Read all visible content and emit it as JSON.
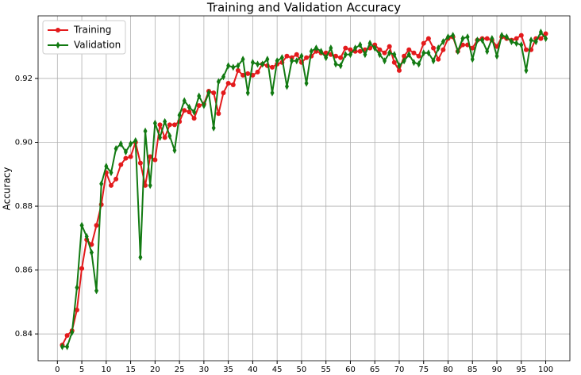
{
  "chart_data": {
    "type": "line",
    "title": "Training and Validation Accuracy",
    "y_label": "Accuracy",
    "x": [
      1,
      2,
      3,
      4,
      5,
      6,
      7,
      8,
      9,
      10,
      11,
      12,
      13,
      14,
      15,
      16,
      17,
      18,
      19,
      20,
      21,
      22,
      23,
      24,
      25,
      26,
      27,
      28,
      29,
      30,
      31,
      32,
      33,
      34,
      35,
      36,
      37,
      38,
      39,
      40,
      41,
      42,
      43,
      44,
      45,
      46,
      47,
      48,
      49,
      50,
      51,
      52,
      53,
      54,
      55,
      56,
      57,
      58,
      59,
      60,
      61,
      62,
      63,
      64,
      65,
      66,
      67,
      68,
      69,
      70,
      71,
      72,
      73,
      74,
      75,
      76,
      77,
      78,
      79,
      80,
      81,
      82,
      83,
      84,
      85,
      86,
      87,
      88,
      89,
      90,
      91,
      92,
      93,
      94,
      95,
      96,
      97,
      98,
      99,
      100
    ],
    "series": [
      {
        "name": "Training",
        "color": "#e31a1c",
        "marker": "circle",
        "values": [
          0.8365,
          0.8395,
          0.841,
          0.8475,
          0.8605,
          0.8695,
          0.868,
          0.874,
          0.8805,
          0.8905,
          0.8865,
          0.8885,
          0.893,
          0.895,
          0.8955,
          0.9,
          0.8935,
          0.8865,
          0.8955,
          0.8945,
          0.9055,
          0.9015,
          0.9055,
          0.9055,
          0.9065,
          0.91,
          0.9095,
          0.9075,
          0.9115,
          0.912,
          0.916,
          0.9155,
          0.909,
          0.9155,
          0.9185,
          0.918,
          0.9225,
          0.921,
          0.9215,
          0.921,
          0.922,
          0.9245,
          0.924,
          0.9235,
          0.9245,
          0.925,
          0.927,
          0.9265,
          0.9275,
          0.925,
          0.9265,
          0.927,
          0.9285,
          0.928,
          0.928,
          0.9275,
          0.927,
          0.9265,
          0.9295,
          0.929,
          0.9285,
          0.9285,
          0.929,
          0.9295,
          0.9305,
          0.929,
          0.928,
          0.93,
          0.925,
          0.9225,
          0.927,
          0.929,
          0.928,
          0.927,
          0.931,
          0.9325,
          0.9295,
          0.926,
          0.929,
          0.9325,
          0.933,
          0.9285,
          0.9305,
          0.9305,
          0.9295,
          0.932,
          0.9325,
          0.9325,
          0.932,
          0.93,
          0.933,
          0.9325,
          0.932,
          0.9325,
          0.9335,
          0.929,
          0.929,
          0.9325,
          0.9325,
          0.934
        ]
      },
      {
        "name": "Validation",
        "color": "#127a12",
        "marker": "diamond",
        "values": [
          0.836,
          0.836,
          0.8405,
          0.8545,
          0.874,
          0.8705,
          0.8655,
          0.8535,
          0.887,
          0.8925,
          0.8905,
          0.898,
          0.8995,
          0.897,
          0.8995,
          0.9005,
          0.864,
          0.9035,
          0.8865,
          0.906,
          0.9015,
          0.9065,
          0.902,
          0.8975,
          0.9085,
          0.913,
          0.911,
          0.9095,
          0.9145,
          0.9115,
          0.9155,
          0.9045,
          0.919,
          0.9205,
          0.924,
          0.9235,
          0.924,
          0.926,
          0.9155,
          0.925,
          0.9245,
          0.9245,
          0.926,
          0.9155,
          0.9255,
          0.9265,
          0.9175,
          0.9255,
          0.9255,
          0.927,
          0.9185,
          0.9285,
          0.9295,
          0.9285,
          0.9265,
          0.9295,
          0.9245,
          0.924,
          0.9275,
          0.9275,
          0.9295,
          0.9305,
          0.9275,
          0.931,
          0.9295,
          0.9275,
          0.9255,
          0.928,
          0.9275,
          0.924,
          0.9255,
          0.9275,
          0.925,
          0.9245,
          0.928,
          0.928,
          0.9255,
          0.9295,
          0.9315,
          0.933,
          0.9335,
          0.9285,
          0.9325,
          0.933,
          0.926,
          0.932,
          0.932,
          0.9285,
          0.9325,
          0.927,
          0.9335,
          0.933,
          0.9315,
          0.931,
          0.9305,
          0.9225,
          0.932,
          0.9315,
          0.9345,
          0.9325
        ]
      }
    ],
    "xlim": [
      -3.95,
      104.95
    ],
    "ylim": [
      0.8316,
      0.9396
    ],
    "xticks": [
      0,
      5,
      10,
      15,
      20,
      25,
      30,
      35,
      40,
      45,
      50,
      55,
      60,
      65,
      70,
      75,
      80,
      85,
      90,
      95,
      100
    ],
    "yticks": [
      0.84,
      0.86,
      0.88,
      {
        "value": 0.9,
        "label": "0.90"
      },
      0.92
    ],
    "grid": true,
    "legend": "upper left"
  }
}
